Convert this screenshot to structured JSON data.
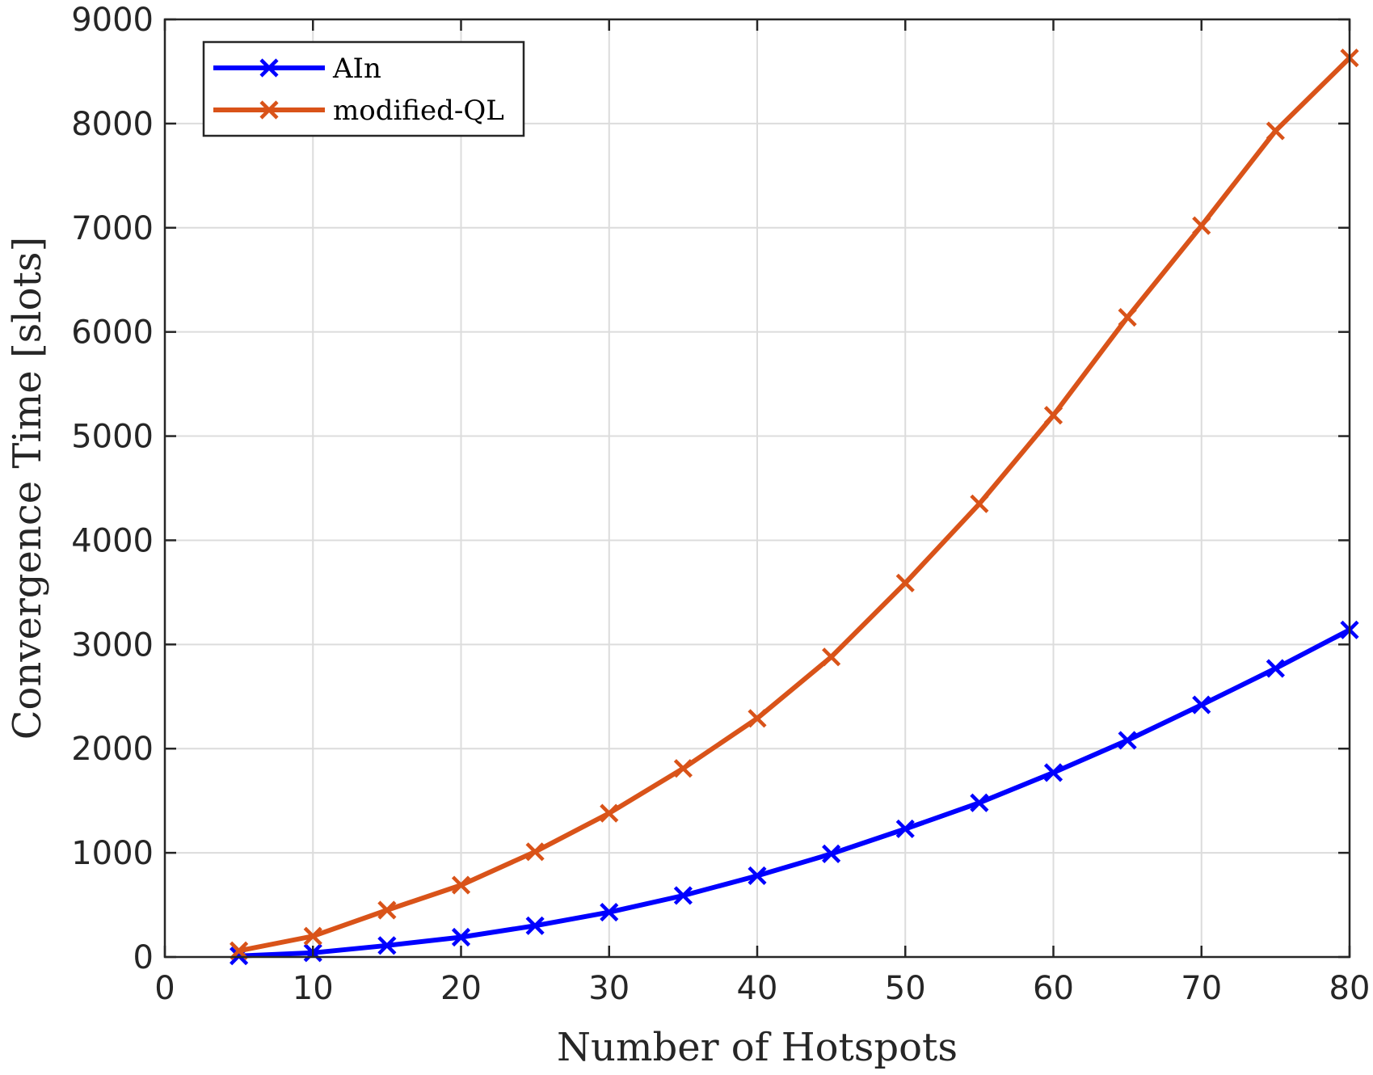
{
  "chart_data": {
    "type": "line",
    "title": "",
    "xlabel": "Number of Hotspots",
    "ylabel": "Convergence Time [slots]",
    "xlim": [
      0,
      80
    ],
    "ylim": [
      0,
      9000
    ],
    "xticks": [
      "0",
      "10",
      "20",
      "30",
      "40",
      "50",
      "60",
      "70",
      "80"
    ],
    "yticks": [
      "0",
      "1000",
      "2000",
      "3000",
      "4000",
      "5000",
      "6000",
      "7000",
      "8000",
      "9000"
    ],
    "grid": true,
    "legend_position": "top-left",
    "x": [
      5,
      10,
      15,
      20,
      25,
      30,
      35,
      40,
      45,
      50,
      55,
      60,
      65,
      70,
      75,
      80
    ],
    "series": [
      {
        "name": "AIn",
        "color": "#0000ff",
        "marker": "x",
        "values": [
          10,
          40,
          110,
          190,
          300,
          430,
          590,
          780,
          990,
          1230,
          1480,
          1770,
          2080,
          2420,
          2770,
          3140
        ]
      },
      {
        "name": "modified-QL",
        "color": "#d95319",
        "marker": "x",
        "values": [
          60,
          200,
          450,
          690,
          1010,
          1380,
          1810,
          2290,
          2880,
          3590,
          4350,
          5200,
          6140,
          7020,
          7930,
          8630
        ]
      }
    ]
  }
}
